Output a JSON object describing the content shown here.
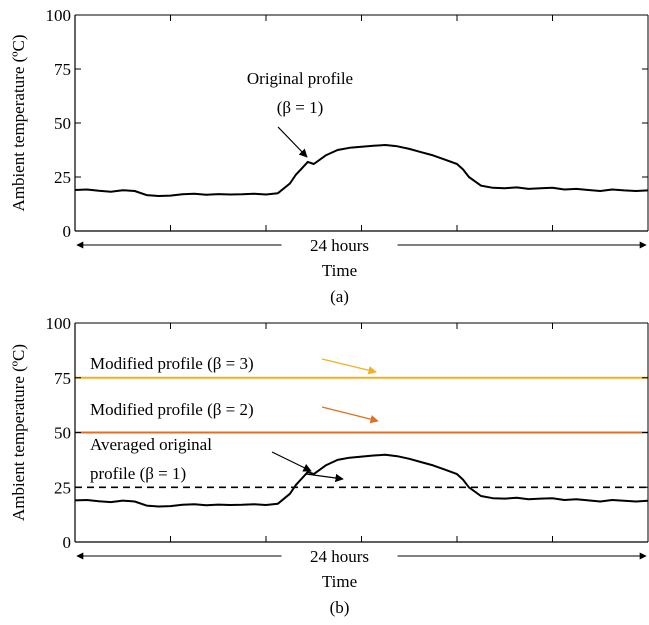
{
  "chart_data": [
    {
      "type": "line",
      "panel_label": "(a)",
      "xlabel": "Time",
      "span_label": "24 hours",
      "ylabel": "Ambient temperature (ºC)",
      "ylim": [
        0,
        100
      ],
      "yticks": [
        "0",
        "25",
        "50",
        "75",
        "100"
      ],
      "grid": false,
      "series": [
        {
          "color": "#000000",
          "style": "solid",
          "x": [
            0,
            0.5,
            1,
            1.5,
            2,
            2.5,
            3,
            3.5,
            4,
            4.5,
            5,
            5.5,
            6,
            6.5,
            7,
            7.5,
            8,
            8.5,
            9,
            9.25,
            9.5,
            9.75,
            10,
            10.5,
            11,
            11.5,
            12,
            12.5,
            13,
            13.5,
            14,
            14.5,
            15,
            15.5,
            16,
            16.25,
            16.5,
            17,
            17.5,
            18,
            18.5,
            19,
            19.5,
            20,
            20.5,
            21,
            21.5,
            22,
            22.5,
            23,
            23.5,
            24
          ],
          "y": [
            19,
            19.2,
            18.6,
            18.2,
            18.9,
            18.5,
            16.6,
            16.2,
            16.4,
            17,
            17.2,
            16.8,
            17.1,
            16.9,
            17,
            17.2,
            16.9,
            17.5,
            22,
            26,
            29,
            32,
            31,
            35,
            37.5,
            38.5,
            39,
            39.5,
            39.8,
            39.2,
            38,
            36.5,
            35,
            33,
            31,
            28.5,
            25,
            21,
            20,
            19.8,
            20.2,
            19.5,
            19.8,
            20,
            19.2,
            19.5,
            19,
            18.5,
            19.2,
            18.8,
            18.5,
            18.8
          ]
        }
      ],
      "annotations": [
        {
          "text": "Original profile",
          "x": 11.5,
          "y": 67
        },
        {
          "text": "(β = 1)",
          "x": 11.5,
          "y": 57
        }
      ]
    },
    {
      "type": "line",
      "panel_label": "(b)",
      "xlabel": "Time",
      "span_label": "24 hours",
      "ylabel": "Ambient temperature (ºC)",
      "ylim": [
        0,
        100
      ],
      "yticks": [
        "0",
        "25",
        "50",
        "75",
        "100"
      ],
      "grid": false,
      "series": [
        {
          "color": "#000000",
          "style": "solid",
          "x": [
            0,
            0.5,
            1,
            1.5,
            2,
            2.5,
            3,
            3.5,
            4,
            4.5,
            5,
            5.5,
            6,
            6.5,
            7,
            7.5,
            8,
            8.5,
            9,
            9.25,
            9.5,
            9.75,
            10,
            10.5,
            11,
            11.5,
            12,
            12.5,
            13,
            13.5,
            14,
            14.5,
            15,
            15.5,
            16,
            16.25,
            16.5,
            17,
            17.5,
            18,
            18.5,
            19,
            19.5,
            20,
            20.5,
            21,
            21.5,
            22,
            22.5,
            23,
            23.5,
            24
          ],
          "y": [
            19,
            19.2,
            18.6,
            18.2,
            18.9,
            18.5,
            16.6,
            16.2,
            16.4,
            17,
            17.2,
            16.8,
            17.1,
            16.9,
            17,
            17.2,
            16.9,
            17.5,
            22,
            26,
            29,
            32,
            31,
            35,
            37.5,
            38.5,
            39,
            39.5,
            39.8,
            39.2,
            38,
            36.5,
            35,
            33,
            31,
            28.5,
            25,
            21,
            20,
            19.8,
            20.2,
            19.5,
            19.8,
            20,
            19.2,
            19.5,
            19,
            18.5,
            19.2,
            18.8,
            18.5,
            18.8
          ]
        },
        {
          "color": "#000000",
          "style": "dashed",
          "x": [
            0,
            24
          ],
          "y": [
            25,
            25
          ]
        },
        {
          "color": "#e07020",
          "style": "solid",
          "x": [
            0,
            24
          ],
          "y": [
            50,
            50
          ]
        },
        {
          "color": "#f0b020",
          "style": "solid",
          "x": [
            0,
            24
          ],
          "y": [
            75,
            75
          ]
        }
      ],
      "annotations": [
        {
          "text": "Modified profile (β = 3)",
          "x": 4.8,
          "y": 78,
          "arrow_color": "#f0b020"
        },
        {
          "text": "Modified profile (β = 2)",
          "x": 4.8,
          "y": 54.5,
          "arrow_color": "#e07020"
        },
        {
          "text": "Averaged original",
          "x": 4.1,
          "y": 40.5,
          "arrow_color": "#000000"
        },
        {
          "text": "profile (β = 1)",
          "x": 4.1,
          "y": 29.5
        }
      ]
    }
  ]
}
